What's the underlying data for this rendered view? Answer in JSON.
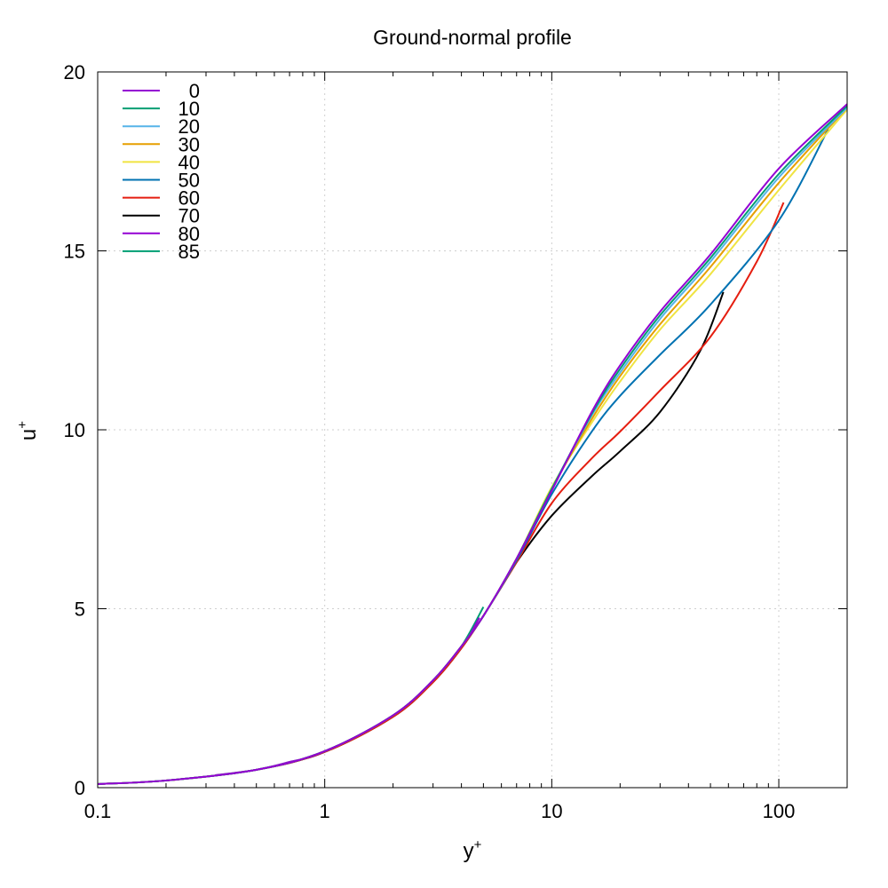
{
  "chart_data": {
    "type": "line",
    "title": "Ground-normal profile",
    "xlabel": "y",
    "xlabel_sup": "+",
    "ylabel": "u",
    "ylabel_sup": "+",
    "xscale": "log",
    "xlim": [
      0.1,
      200
    ],
    "ylim": [
      0,
      20
    ],
    "xticks": [
      0.1,
      1,
      10,
      100
    ],
    "xtick_labels": [
      "0.1",
      "1",
      "10",
      "100"
    ],
    "yticks": [
      0,
      5,
      10,
      15,
      20
    ],
    "ytick_labels": [
      "0",
      "5",
      "10",
      "15",
      "20"
    ],
    "grid": true,
    "legend_position": "top-left",
    "series": [
      {
        "name": "0",
        "color": "#9400d3",
        "points": [
          [
            0.1,
            0.1
          ],
          [
            0.2,
            0.2
          ],
          [
            0.5,
            0.5
          ],
          [
            1,
            1.02
          ],
          [
            2,
            2.02
          ],
          [
            3,
            3.0
          ],
          [
            4,
            3.95
          ],
          [
            5,
            4.8
          ],
          [
            7,
            6.4
          ],
          [
            10,
            8.3
          ],
          [
            15,
            10.5
          ],
          [
            20,
            11.8
          ],
          [
            30,
            13.3
          ],
          [
            50,
            14.9
          ],
          [
            100,
            17.3
          ],
          [
            200,
            19.1
          ]
        ]
      },
      {
        "name": "10",
        "color": "#009e73",
        "points": [
          [
            0.1,
            0.1
          ],
          [
            0.2,
            0.2
          ],
          [
            0.5,
            0.5
          ],
          [
            1,
            1.02
          ],
          [
            2,
            2.02
          ],
          [
            3,
            3.0
          ],
          [
            4,
            3.95
          ],
          [
            5,
            4.8
          ],
          [
            7,
            6.4
          ],
          [
            10,
            8.35
          ],
          [
            15,
            10.45
          ],
          [
            20,
            11.7
          ],
          [
            30,
            13.2
          ],
          [
            50,
            14.8
          ],
          [
            100,
            17.15
          ],
          [
            200,
            19.05
          ]
        ]
      },
      {
        "name": "20",
        "color": "#56b4e9",
        "points": [
          [
            0.1,
            0.1
          ],
          [
            0.2,
            0.2
          ],
          [
            0.5,
            0.5
          ],
          [
            1,
            1.02
          ],
          [
            2,
            2.02
          ],
          [
            3,
            3.0
          ],
          [
            4,
            3.95
          ],
          [
            5,
            4.8
          ],
          [
            7,
            6.4
          ],
          [
            10,
            8.35
          ],
          [
            15,
            10.4
          ],
          [
            20,
            11.6
          ],
          [
            30,
            13.1
          ],
          [
            50,
            14.7
          ],
          [
            100,
            17.05
          ],
          [
            200,
            19.0
          ]
        ]
      },
      {
        "name": "30",
        "color": "#e69f00",
        "points": [
          [
            0.1,
            0.1
          ],
          [
            0.2,
            0.2
          ],
          [
            0.5,
            0.5
          ],
          [
            1,
            1.02
          ],
          [
            2,
            2.02
          ],
          [
            3,
            3.0
          ],
          [
            4,
            3.95
          ],
          [
            5,
            4.8
          ],
          [
            7,
            6.4
          ],
          [
            10,
            8.35
          ],
          [
            15,
            10.3
          ],
          [
            20,
            11.5
          ],
          [
            30,
            12.95
          ],
          [
            50,
            14.55
          ],
          [
            100,
            16.9
          ],
          [
            200,
            19.0
          ]
        ]
      },
      {
        "name": "40",
        "color": "#f0e442",
        "points": [
          [
            0.1,
            0.1
          ],
          [
            0.2,
            0.2
          ],
          [
            0.5,
            0.5
          ],
          [
            1,
            1.02
          ],
          [
            2,
            2.02
          ],
          [
            3,
            3.0
          ],
          [
            4,
            3.95
          ],
          [
            5,
            4.8
          ],
          [
            7,
            6.4
          ],
          [
            10,
            8.4
          ],
          [
            15,
            10.2
          ],
          [
            20,
            11.35
          ],
          [
            30,
            12.8
          ],
          [
            50,
            14.35
          ],
          [
            100,
            16.7
          ],
          [
            200,
            18.95
          ]
        ]
      },
      {
        "name": "50",
        "color": "#0072b2",
        "points": [
          [
            0.1,
            0.1
          ],
          [
            0.2,
            0.2
          ],
          [
            0.5,
            0.5
          ],
          [
            1,
            1.02
          ],
          [
            2,
            2.02
          ],
          [
            3,
            3.0
          ],
          [
            4,
            3.95
          ],
          [
            5,
            4.8
          ],
          [
            7,
            6.35
          ],
          [
            10,
            8.2
          ],
          [
            15,
            9.95
          ],
          [
            20,
            10.95
          ],
          [
            30,
            12.1
          ],
          [
            50,
            13.5
          ],
          [
            100,
            15.85
          ],
          [
            165,
            18.4
          ]
        ]
      },
      {
        "name": "60",
        "color": "#e51e10",
        "points": [
          [
            0.1,
            0.1
          ],
          [
            0.2,
            0.2
          ],
          [
            0.5,
            0.5
          ],
          [
            1,
            1.0
          ],
          [
            2,
            1.98
          ],
          [
            3,
            2.95
          ],
          [
            4,
            3.9
          ],
          [
            5,
            4.8
          ],
          [
            7,
            6.3
          ],
          [
            10,
            7.95
          ],
          [
            15,
            9.2
          ],
          [
            20,
            9.95
          ],
          [
            30,
            11.1
          ],
          [
            50,
            12.6
          ],
          [
            80,
            14.7
          ],
          [
            105,
            16.35
          ]
        ]
      },
      {
        "name": "70",
        "color": "#000000",
        "points": [
          [
            0.1,
            0.1
          ],
          [
            0.2,
            0.2
          ],
          [
            0.5,
            0.5
          ],
          [
            1,
            1.0
          ],
          [
            2,
            1.98
          ],
          [
            3,
            2.95
          ],
          [
            4,
            3.9
          ],
          [
            5,
            4.8
          ],
          [
            7,
            6.3
          ],
          [
            10,
            7.6
          ],
          [
            15,
            8.7
          ],
          [
            20,
            9.4
          ],
          [
            30,
            10.5
          ],
          [
            45,
            12.2
          ],
          [
            57,
            13.85
          ]
        ]
      },
      {
        "name": "80",
        "color": "#9400d3",
        "points": [
          [
            0.33,
            0.35
          ],
          [
            0.5,
            0.5
          ],
          [
            0.7,
            0.72
          ],
          [
            1,
            1.0
          ],
          [
            2,
            2.0
          ],
          [
            3,
            3.0
          ],
          [
            4,
            3.9
          ],
          [
            4.8,
            4.75
          ]
        ]
      },
      {
        "name": "85",
        "color": "#009e73",
        "points": [
          [
            0.1,
            0.1
          ],
          [
            0.2,
            0.2
          ],
          [
            0.5,
            0.5
          ],
          [
            1,
            1.02
          ],
          [
            2,
            2.02
          ],
          [
            3,
            3.0
          ],
          [
            4,
            3.95
          ],
          [
            5,
            5.05
          ]
        ]
      }
    ]
  }
}
